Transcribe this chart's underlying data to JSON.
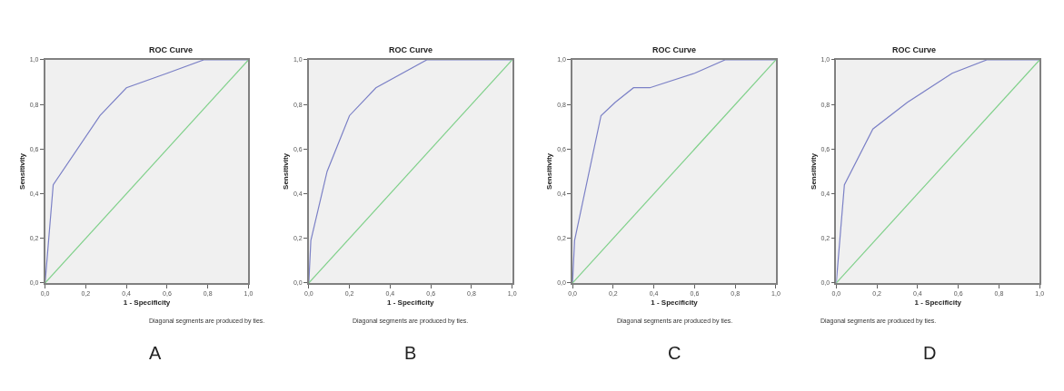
{
  "chart_data": [
    {
      "type": "line",
      "title": "ROC Curve",
      "xlabel": "1 - Specificity",
      "ylabel": "Sensitivity",
      "xlim": [
        0,
        1
      ],
      "ylim": [
        0,
        1
      ],
      "xticks": [
        {
          "value": 0,
          "label": "0,0"
        },
        {
          "value": 0.2,
          "label": "0,2"
        },
        {
          "value": 0.4,
          "label": "0,4"
        },
        {
          "value": 0.6,
          "label": "0,6"
        },
        {
          "value": 0.8,
          "label": "0,8"
        },
        {
          "value": 1,
          "label": "1,0"
        }
      ],
      "yticks": [
        {
          "value": 0,
          "label": "0,0"
        },
        {
          "value": 0.2,
          "label": "0,2"
        },
        {
          "value": 0.4,
          "label": "0,4"
        },
        {
          "value": 0.6,
          "label": "0,6"
        },
        {
          "value": 0.8,
          "label": "0,8"
        },
        {
          "value": 1,
          "label": "1,0"
        }
      ],
      "grid": false,
      "marker": "none",
      "line_style": "solid",
      "series": [
        {
          "color": "#7b80c6",
          "x": [
            0,
            0.04,
            0.27,
            0.4,
            0.6,
            0.78,
            1
          ],
          "values": [
            0,
            0.44,
            0.75,
            0.875,
            0.94,
            1,
            1
          ]
        },
        {
          "color": "#7fd08a",
          "x": [
            0,
            1
          ],
          "values": [
            0,
            1
          ]
        }
      ],
      "annotations": [
        "Diagonal segments are produced by ties.",
        "A"
      ]
    },
    {
      "type": "line",
      "title": "ROC Curve",
      "xlabel": "1 - Specificity",
      "ylabel": "Sensitivity",
      "xlim": [
        0,
        1
      ],
      "ylim": [
        0,
        1
      ],
      "xticks": [
        {
          "value": 0,
          "label": "0,0"
        },
        {
          "value": 0.2,
          "label": "0,2"
        },
        {
          "value": 0.4,
          "label": "0,4"
        },
        {
          "value": 0.6,
          "label": "0,6"
        },
        {
          "value": 0.8,
          "label": "0,8"
        },
        {
          "value": 1,
          "label": "1,0"
        }
      ],
      "yticks": [
        {
          "value": 0,
          "label": "0,0"
        },
        {
          "value": 0.2,
          "label": "0,2"
        },
        {
          "value": 0.4,
          "label": "0,4"
        },
        {
          "value": 0.6,
          "label": "0,6"
        },
        {
          "value": 0.8,
          "label": "0,8"
        },
        {
          "value": 1,
          "label": "1,0"
        }
      ],
      "grid": false,
      "marker": "none",
      "line_style": "solid",
      "series": [
        {
          "color": "#7b80c6",
          "x": [
            0,
            0.01,
            0.09,
            0.2,
            0.33,
            0.58,
            1
          ],
          "values": [
            0,
            0.19,
            0.5,
            0.75,
            0.875,
            1,
            1
          ]
        },
        {
          "color": "#7fd08a",
          "x": [
            0,
            1
          ],
          "values": [
            0,
            1
          ]
        }
      ],
      "annotations": [
        "Diagonal segments are produced by ties.",
        "B"
      ]
    },
    {
      "type": "line",
      "title": "ROC Curve",
      "xlabel": "1 - Specificity",
      "ylabel": "Sensitivity",
      "xlim": [
        0,
        1
      ],
      "ylim": [
        0,
        1
      ],
      "xticks": [
        {
          "value": 0,
          "label": "0,0"
        },
        {
          "value": 0.2,
          "label": "0,2"
        },
        {
          "value": 0.4,
          "label": "0,4"
        },
        {
          "value": 0.6,
          "label": "0,6"
        },
        {
          "value": 0.8,
          "label": "0,8"
        },
        {
          "value": 1,
          "label": "1,0"
        }
      ],
      "yticks": [
        {
          "value": 0,
          "label": "0,0"
        },
        {
          "value": 0.2,
          "label": "0,2"
        },
        {
          "value": 0.4,
          "label": "0,4"
        },
        {
          "value": 0.6,
          "label": "0,6"
        },
        {
          "value": 0.8,
          "label": "0,8"
        },
        {
          "value": 1,
          "label": "1,0"
        }
      ],
      "grid": false,
      "marker": "none",
      "line_style": "solid",
      "series": [
        {
          "color": "#7b80c6",
          "x": [
            0,
            0.01,
            0.14,
            0.21,
            0.3,
            0.38,
            0.6,
            0.75,
            1
          ],
          "values": [
            0,
            0.19,
            0.75,
            0.81,
            0.875,
            0.875,
            0.94,
            1,
            1
          ]
        },
        {
          "color": "#7fd08a",
          "x": [
            0,
            1
          ],
          "values": [
            0,
            1
          ]
        }
      ],
      "annotations": [
        "Diagonal segments are produced by ties.",
        "C"
      ]
    },
    {
      "type": "line",
      "title": "ROC Curve",
      "xlabel": "1 - Specificity",
      "ylabel": "Sensitivity",
      "xlim": [
        0,
        1
      ],
      "ylim": [
        0,
        1
      ],
      "xticks": [
        {
          "value": 0,
          "label": "0,0"
        },
        {
          "value": 0.2,
          "label": "0,2"
        },
        {
          "value": 0.4,
          "label": "0,4"
        },
        {
          "value": 0.6,
          "label": "0,6"
        },
        {
          "value": 0.8,
          "label": "0,8"
        },
        {
          "value": 1,
          "label": "1,0"
        }
      ],
      "yticks": [
        {
          "value": 0,
          "label": "0,0"
        },
        {
          "value": 0.2,
          "label": "0,2"
        },
        {
          "value": 0.4,
          "label": "0,4"
        },
        {
          "value": 0.6,
          "label": "0,6"
        },
        {
          "value": 0.8,
          "label": "0,8"
        },
        {
          "value": 1,
          "label": "1,0"
        }
      ],
      "grid": false,
      "marker": "none",
      "line_style": "solid",
      "series": [
        {
          "color": "#7b80c6",
          "x": [
            0,
            0.04,
            0.18,
            0.35,
            0.57,
            0.74,
            1
          ],
          "values": [
            0,
            0.44,
            0.69,
            0.81,
            0.94,
            1,
            1
          ]
        },
        {
          "color": "#7fd08a",
          "x": [
            0,
            1
          ],
          "values": [
            0,
            1
          ]
        }
      ],
      "annotations": [
        "Diagonal segments are produced by ties.",
        "D"
      ]
    }
  ]
}
